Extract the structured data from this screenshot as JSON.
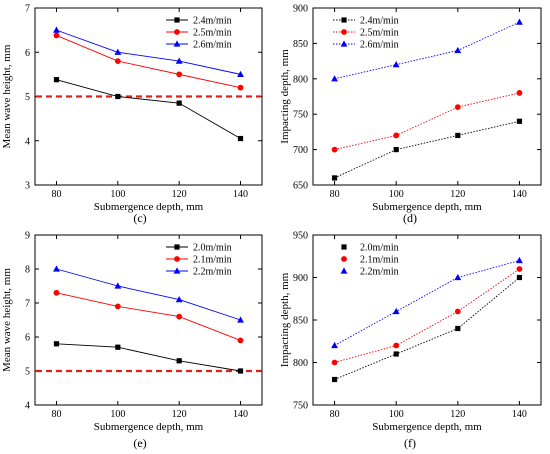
{
  "chart_data": [
    {
      "type": "line",
      "panel_label": "(c)",
      "xlabel": "Submergence depth, mm",
      "ylabel": "Mean wave height, mm",
      "x": [
        80,
        100,
        120,
        140
      ],
      "xlim": [
        73,
        147
      ],
      "ylim": [
        3,
        7
      ],
      "xticks": [
        "80",
        "100",
        "120",
        "140"
      ],
      "yticks": [
        "3",
        "4",
        "5",
        "6",
        "7"
      ],
      "yticks_values": [
        3,
        4,
        5,
        6,
        7
      ],
      "reference_line": 5,
      "reference_color": "#e0201a",
      "legend_position": "top-right",
      "legend_style": "plain",
      "series": [
        {
          "name": "2.4m/min",
          "values": [
            5.38,
            5.0,
            4.85,
            4.05
          ],
          "color": "#000000",
          "marker": "square"
        },
        {
          "name": "2.5m/min",
          "values": [
            6.38,
            5.8,
            5.5,
            5.2
          ],
          "color": "#ff0000",
          "marker": "circle"
        },
        {
          "name": "2.6m/min",
          "values": [
            6.5,
            6.0,
            5.8,
            5.5
          ],
          "color": "#0000ff",
          "marker": "triangle"
        }
      ]
    },
    {
      "type": "line",
      "panel_label": "(d)",
      "xlabel": "Submergence  depth, mm",
      "ylabel": "Impacting depth, mm",
      "x": [
        80,
        100,
        120,
        140
      ],
      "xlim": [
        73,
        147
      ],
      "ylim": [
        650,
        900
      ],
      "xticks": [
        "80",
        "100",
        "120",
        "140"
      ],
      "yticks": [
        "650",
        "700",
        "750",
        "800",
        "850",
        "900"
      ],
      "yticks_values": [
        650,
        700,
        750,
        800,
        850,
        900
      ],
      "legend_position": "top-left",
      "legend_style": "dotted",
      "series": [
        {
          "name": "2.4m/min",
          "values": [
            660,
            700,
            720,
            740
          ],
          "color": "#000000",
          "marker": "square"
        },
        {
          "name": "2.5m/min",
          "values": [
            700,
            720,
            760,
            780
          ],
          "color": "#ff0000",
          "marker": "circle"
        },
        {
          "name": "2.6m/min",
          "values": [
            800,
            820,
            840,
            880
          ],
          "color": "#0000ff",
          "marker": "triangle"
        }
      ]
    },
    {
      "type": "line",
      "panel_label": "(e)",
      "xlabel": "Submergence depth, mm",
      "ylabel": "Mean wave height, mm",
      "x": [
        80,
        100,
        120,
        140
      ],
      "xlim": [
        73,
        147
      ],
      "ylim": [
        4,
        9
      ],
      "xticks": [
        "80",
        "100",
        "120",
        "140"
      ],
      "yticks": [
        "4",
        "5",
        "6",
        "7",
        "8",
        "9"
      ],
      "yticks_values": [
        4,
        5,
        6,
        7,
        8,
        9
      ],
      "reference_line": 5,
      "reference_color": "#e0201a",
      "legend_position": "top-right",
      "legend_style": "plain",
      "series": [
        {
          "name": "2.0m/min",
          "values": [
            5.8,
            5.7,
            5.3,
            5.0
          ],
          "color": "#000000",
          "marker": "square"
        },
        {
          "name": "2.1m/min",
          "values": [
            7.3,
            6.9,
            6.6,
            5.9
          ],
          "color": "#ff0000",
          "marker": "circle"
        },
        {
          "name": "2.2m/min",
          "values": [
            8.0,
            7.5,
            7.1,
            6.5
          ],
          "color": "#0000ff",
          "marker": "triangle"
        }
      ]
    },
    {
      "type": "line",
      "panel_label": "(f)",
      "xlabel": "Submergence  depth, mm",
      "ylabel": "Impacting depth, mm",
      "x": [
        80,
        100,
        120,
        140
      ],
      "xlim": [
        73,
        147
      ],
      "ylim": [
        750,
        950
      ],
      "xticks": [
        "80",
        "100",
        "120",
        "140"
      ],
      "yticks": [
        "750",
        "800",
        "850",
        "900",
        "950"
      ],
      "yticks_values": [
        750,
        800,
        850,
        900,
        950
      ],
      "legend_position": "top-left",
      "legend_style": "marker-only",
      "series": [
        {
          "name": "2.0m/min",
          "values": [
            780,
            810,
            840,
            900
          ],
          "color": "#000000",
          "marker": "square"
        },
        {
          "name": "2.1m/min",
          "values": [
            800,
            820,
            860,
            910
          ],
          "color": "#ff0000",
          "marker": "circle"
        },
        {
          "name": "2.2m/min",
          "values": [
            820,
            860,
            900,
            920
          ],
          "color": "#0000ff",
          "marker": "triangle"
        }
      ]
    }
  ]
}
